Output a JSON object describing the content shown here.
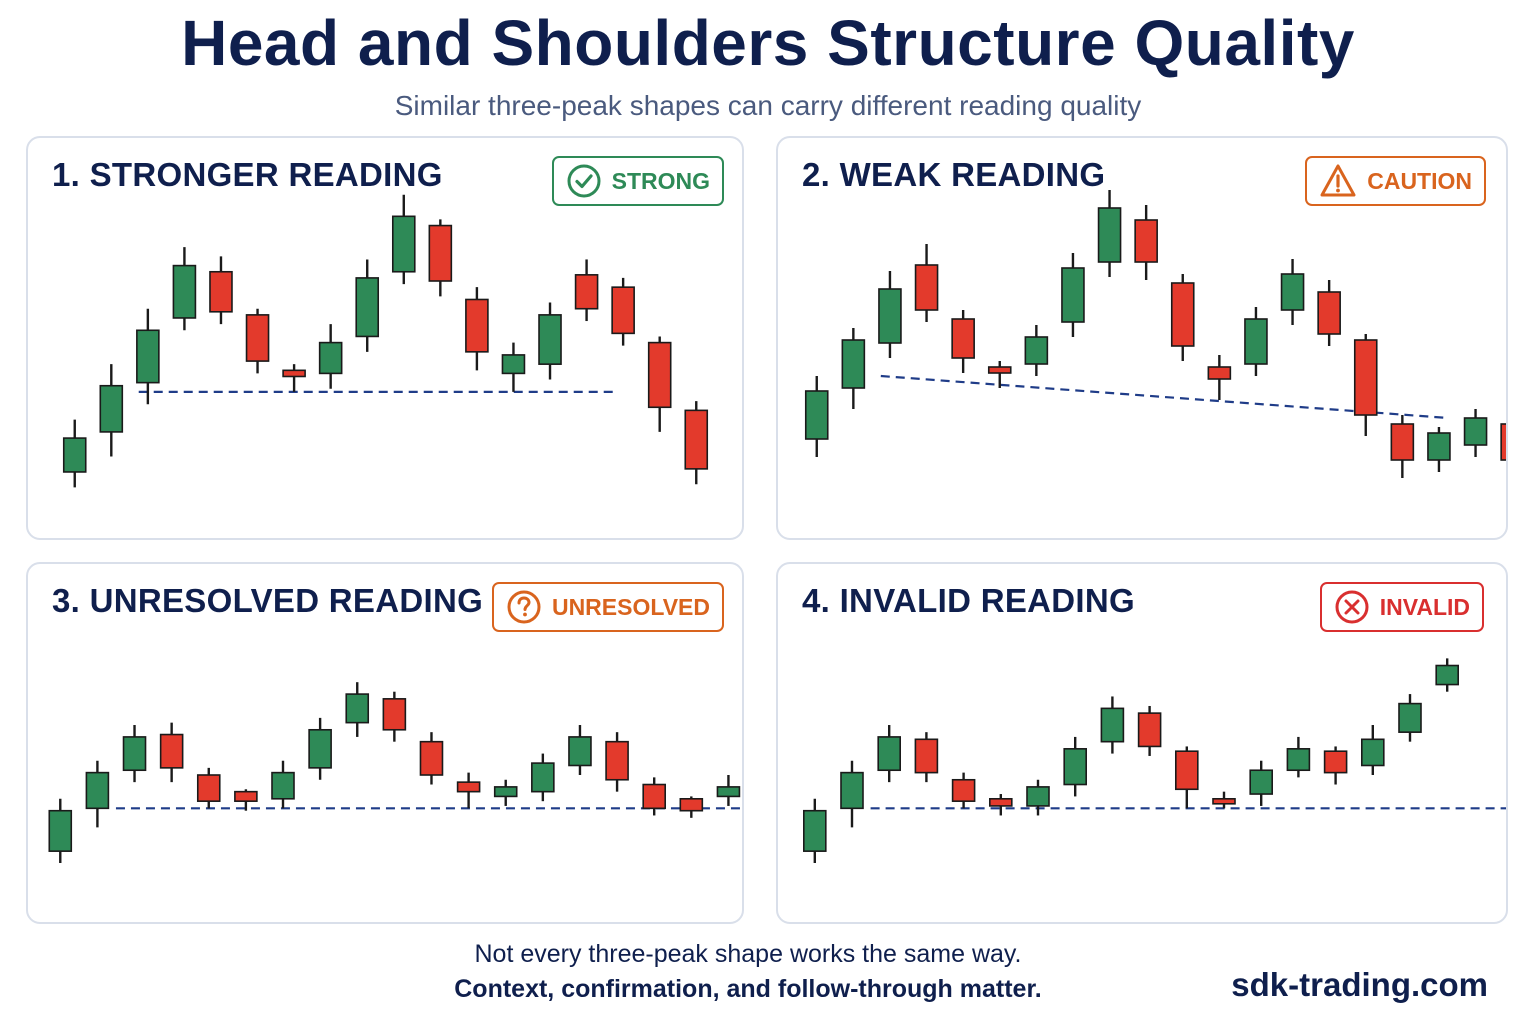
{
  "title": "Head and Shoulders Structure Quality",
  "subtitle": "Similar three-peak shapes can carry different reading quality",
  "footer": {
    "line1": "Not every three-peak shape works the same way.",
    "line2": "Context, confirmation, and follow-through matter.",
    "brand": "sdk-trading.com"
  },
  "colors": {
    "bull": "#2e8a57",
    "bear": "#e33a2c",
    "wick": "#1a1a1a",
    "neckline": "#1f3c88"
  },
  "chart_data": [
    {
      "type": "candlestick",
      "title": "1.  STRONGER READING",
      "badge": {
        "label": "STRONG",
        "icon": "check-circle-icon",
        "color": "#2e8a57"
      },
      "ylim": [
        0,
        100
      ],
      "neckline": {
        "x": [
          4.5,
          30.5
        ],
        "y": [
          39,
          39
        ]
      },
      "candles": [
        {
          "x": 1,
          "open": 13,
          "close": 24,
          "high": 30,
          "low": 8
        },
        {
          "x": 3,
          "open": 26,
          "close": 41,
          "high": 48,
          "low": 18
        },
        {
          "x": 5,
          "open": 42,
          "close": 59,
          "high": 66,
          "low": 35
        },
        {
          "x": 7,
          "open": 63,
          "close": 80,
          "high": 86,
          "low": 59
        },
        {
          "x": 9,
          "open": 78,
          "close": 65,
          "high": 83,
          "low": 61
        },
        {
          "x": 11,
          "open": 64,
          "close": 49,
          "high": 66,
          "low": 45
        },
        {
          "x": 13,
          "open": 46,
          "close": 44,
          "high": 48,
          "low": 39
        },
        {
          "x": 15,
          "open": 45,
          "close": 55,
          "high": 61,
          "low": 40
        },
        {
          "x": 17,
          "open": 57,
          "close": 76,
          "high": 82,
          "low": 52
        },
        {
          "x": 19,
          "open": 78,
          "close": 96,
          "high": 103,
          "low": 74
        },
        {
          "x": 21,
          "open": 93,
          "close": 75,
          "high": 95,
          "low": 70
        },
        {
          "x": 23,
          "open": 69,
          "close": 52,
          "high": 73,
          "low": 46
        },
        {
          "x": 25,
          "open": 45,
          "close": 51,
          "high": 55,
          "low": 39
        },
        {
          "x": 27,
          "open": 48,
          "close": 64,
          "high": 68,
          "low": 43
        },
        {
          "x": 29,
          "open": 77,
          "close": 66,
          "high": 82,
          "low": 62
        },
        {
          "x": 31,
          "open": 73,
          "close": 58,
          "high": 76,
          "low": 54
        },
        {
          "x": 33,
          "open": 55,
          "close": 34,
          "high": 57,
          "low": 26
        },
        {
          "x": 35,
          "open": 33,
          "close": 14,
          "high": 36,
          "low": 9
        }
      ]
    },
    {
      "type": "candlestick",
      "title": "2.  WEAK READING",
      "badge": {
        "label": "CAUTION",
        "icon": "warning-triangle-icon",
        "color": "#d9641e"
      },
      "ylim": [
        0,
        100
      ],
      "neckline": {
        "x": [
          4.5,
          35.5
        ],
        "y": [
          44,
          30
        ]
      },
      "candles": [
        {
          "x": 1,
          "open": 23,
          "close": 39,
          "high": 44,
          "low": 17
        },
        {
          "x": 3,
          "open": 40,
          "close": 56,
          "high": 60,
          "low": 33
        },
        {
          "x": 5,
          "open": 55,
          "close": 73,
          "high": 79,
          "low": 50
        },
        {
          "x": 7,
          "open": 81,
          "close": 66,
          "high": 88,
          "low": 62
        },
        {
          "x": 9,
          "open": 63,
          "close": 50,
          "high": 66,
          "low": 45
        },
        {
          "x": 11,
          "open": 47,
          "close": 45,
          "high": 49,
          "low": 40
        },
        {
          "x": 13,
          "open": 48,
          "close": 57,
          "high": 61,
          "low": 44
        },
        {
          "x": 15,
          "open": 62,
          "close": 80,
          "high": 85,
          "low": 57
        },
        {
          "x": 17,
          "open": 82,
          "close": 100,
          "high": 106,
          "low": 77
        },
        {
          "x": 19,
          "open": 96,
          "close": 82,
          "high": 101,
          "low": 76
        },
        {
          "x": 21,
          "open": 75,
          "close": 54,
          "high": 78,
          "low": 49
        },
        {
          "x": 23,
          "open": 47,
          "close": 43,
          "high": 51,
          "low": 36
        },
        {
          "x": 25,
          "open": 48,
          "close": 63,
          "high": 67,
          "low": 44
        },
        {
          "x": 27,
          "open": 66,
          "close": 78,
          "high": 83,
          "low": 61
        },
        {
          "x": 29,
          "open": 72,
          "close": 58,
          "high": 76,
          "low": 54
        },
        {
          "x": 31,
          "open": 56,
          "close": 31,
          "high": 58,
          "low": 24
        },
        {
          "x": 33,
          "open": 28,
          "close": 16,
          "high": 31,
          "low": 10
        },
        {
          "x": 35,
          "open": 16,
          "close": 25,
          "high": 27,
          "low": 12
        },
        {
          "x": 37,
          "open": 21,
          "close": 30,
          "high": 33,
          "low": 17
        },
        {
          "x": 39,
          "open": 28,
          "close": 16,
          "high": 32,
          "low": 11
        }
      ]
    },
    {
      "type": "candlestick",
      "title": "3.  UNRESOLVED READING",
      "badge": {
        "label": "UNRESOLVED",
        "icon": "question-circle-icon",
        "color": "#d9641e"
      },
      "ylim": [
        0,
        100
      ],
      "neckline": {
        "x": [
          4,
          40
        ],
        "y": [
          36,
          36
        ]
      },
      "candles": [
        {
          "x": 1,
          "open": 18,
          "close": 35,
          "high": 40,
          "low": 13
        },
        {
          "x": 3,
          "open": 36,
          "close": 51,
          "high": 56,
          "low": 28
        },
        {
          "x": 5,
          "open": 52,
          "close": 66,
          "high": 71,
          "low": 47
        },
        {
          "x": 7,
          "open": 67,
          "close": 53,
          "high": 72,
          "low": 47
        },
        {
          "x": 9,
          "open": 50,
          "close": 39,
          "high": 53,
          "low": 36
        },
        {
          "x": 11,
          "open": 43,
          "close": 39,
          "high": 44,
          "low": 35
        },
        {
          "x": 13,
          "open": 40,
          "close": 51,
          "high": 56,
          "low": 36
        },
        {
          "x": 15,
          "open": 53,
          "close": 69,
          "high": 74,
          "low": 48
        },
        {
          "x": 17,
          "open": 72,
          "close": 84,
          "high": 89,
          "low": 66
        },
        {
          "x": 19,
          "open": 82,
          "close": 69,
          "high": 85,
          "low": 64
        },
        {
          "x": 21,
          "open": 64,
          "close": 50,
          "high": 68,
          "low": 46
        },
        {
          "x": 23,
          "open": 47,
          "close": 43,
          "high": 51,
          "low": 36
        },
        {
          "x": 25,
          "open": 41,
          "close": 45,
          "high": 48,
          "low": 37
        },
        {
          "x": 27,
          "open": 43,
          "close": 55,
          "high": 59,
          "low": 39
        },
        {
          "x": 29,
          "open": 54,
          "close": 66,
          "high": 71,
          "low": 50
        },
        {
          "x": 31,
          "open": 64,
          "close": 48,
          "high": 68,
          "low": 43
        },
        {
          "x": 33,
          "open": 46,
          "close": 36,
          "high": 49,
          "low": 33
        },
        {
          "x": 35,
          "open": 40,
          "close": 35,
          "high": 41,
          "low": 32
        },
        {
          "x": 37,
          "open": 41,
          "close": 45,
          "high": 50,
          "low": 37
        }
      ]
    },
    {
      "type": "candlestick",
      "title": "4.  INVALID READING",
      "badge": {
        "label": "INVALID",
        "icon": "x-circle-icon",
        "color": "#d92f2f"
      },
      "ylim": [
        0,
        100
      ],
      "neckline": {
        "x": [
          4,
          38.5
        ],
        "y": [
          36,
          36
        ]
      },
      "candles": [
        {
          "x": 1,
          "open": 18,
          "close": 35,
          "high": 40,
          "low": 13
        },
        {
          "x": 3,
          "open": 36,
          "close": 51,
          "high": 56,
          "low": 28
        },
        {
          "x": 5,
          "open": 52,
          "close": 66,
          "high": 71,
          "low": 47
        },
        {
          "x": 7,
          "open": 65,
          "close": 51,
          "high": 68,
          "low": 47
        },
        {
          "x": 9,
          "open": 48,
          "close": 39,
          "high": 51,
          "low": 36
        },
        {
          "x": 11,
          "open": 40,
          "close": 37,
          "high": 42,
          "low": 33
        },
        {
          "x": 13,
          "open": 37,
          "close": 45,
          "high": 48,
          "low": 33
        },
        {
          "x": 15,
          "open": 46,
          "close": 61,
          "high": 66,
          "low": 41
        },
        {
          "x": 17,
          "open": 64,
          "close": 78,
          "high": 83,
          "low": 59
        },
        {
          "x": 19,
          "open": 76,
          "close": 62,
          "high": 79,
          "low": 58
        },
        {
          "x": 21,
          "open": 60,
          "close": 44,
          "high": 62,
          "low": 36
        },
        {
          "x": 23,
          "open": 40,
          "close": 38,
          "high": 43,
          "low": 36
        },
        {
          "x": 25,
          "open": 42,
          "close": 52,
          "high": 56,
          "low": 37
        },
        {
          "x": 27,
          "open": 52,
          "close": 61,
          "high": 66,
          "low": 49
        },
        {
          "x": 29,
          "open": 60,
          "close": 51,
          "high": 62,
          "low": 46
        },
        {
          "x": 31,
          "open": 54,
          "close": 65,
          "high": 71,
          "low": 50
        },
        {
          "x": 33,
          "open": 68,
          "close": 80,
          "high": 84,
          "low": 64
        },
        {
          "x": 35,
          "open": 88,
          "close": 96,
          "high": 99,
          "low": 85
        }
      ]
    }
  ]
}
